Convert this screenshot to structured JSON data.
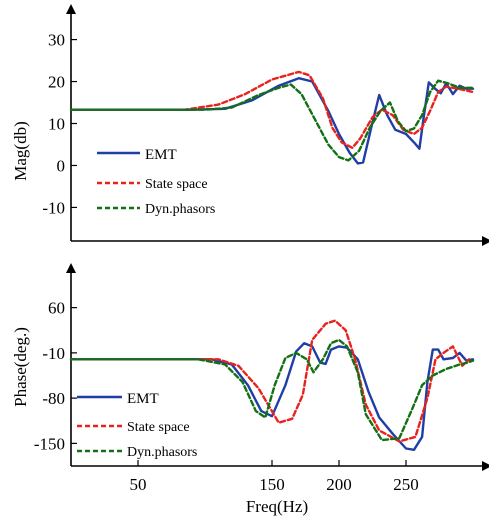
{
  "chart_data": [
    {
      "type": "line",
      "xlabel": "",
      "ylabel": "Mag(db)",
      "xlim": [
        0,
        300
      ],
      "ylim": [
        -18,
        33
      ],
      "yticks": [
        30,
        20,
        10,
        0,
        -10
      ],
      "legend": "bottom-left",
      "grid": false,
      "series": [
        {
          "name": "EMT",
          "color": "#1f3fa6",
          "dash": "solid",
          "points": [
            [
              0,
              13.3
            ],
            [
              90,
              13.3
            ],
            [
              115,
              13.5
            ],
            [
              135,
              15.5
            ],
            [
              155,
              19
            ],
            [
              170,
              20.8
            ],
            [
              180,
              20
            ],
            [
              192,
              13
            ],
            [
              200,
              7.5
            ],
            [
              208,
              3
            ],
            [
              214,
              0.5
            ],
            [
              218,
              0.7
            ],
            [
              224,
              9
            ],
            [
              230,
              16.8
            ],
            [
              236,
              12
            ],
            [
              242,
              8.5
            ],
            [
              250,
              7.5
            ],
            [
              256,
              5.5
            ],
            [
              260,
              4
            ],
            [
              263,
              11
            ],
            [
              267,
              19.8
            ],
            [
              272,
              18.2
            ],
            [
              276,
              17.2
            ],
            [
              280,
              19.6
            ],
            [
              285,
              17
            ],
            [
              290,
              19
            ],
            [
              295,
              18.3
            ],
            [
              300,
              18.3
            ]
          ]
        },
        {
          "name": "State space",
          "color": "#e8231d",
          "dash": "dash",
          "points": [
            [
              0,
              13.3
            ],
            [
              85,
              13.3
            ],
            [
              110,
              14.5
            ],
            [
              130,
              17
            ],
            [
              150,
              20.5
            ],
            [
              170,
              22.3
            ],
            [
              178,
              21.5
            ],
            [
              188,
              16
            ],
            [
              195,
              9
            ],
            [
              202,
              5.5
            ],
            [
              210,
              4.2
            ],
            [
              216,
              6.5
            ],
            [
              225,
              11.5
            ],
            [
              232,
              13.3
            ],
            [
              240,
              12
            ],
            [
              248,
              8.5
            ],
            [
              256,
              7.5
            ],
            [
              262,
              9
            ],
            [
              268,
              13
            ],
            [
              274,
              17.5
            ],
            [
              280,
              18.8
            ],
            [
              290,
              18.2
            ],
            [
              300,
              17.5
            ]
          ]
        },
        {
          "name": "Dyn.phasors",
          "color": "#137014",
          "dash": "dash",
          "points": [
            [
              0,
              13.3
            ],
            [
              100,
              13.3
            ],
            [
              120,
              13.8
            ],
            [
              140,
              16.8
            ],
            [
              155,
              18.5
            ],
            [
              164,
              19.3
            ],
            [
              172,
              17
            ],
            [
              182,
              11
            ],
            [
              192,
              5
            ],
            [
              200,
              2
            ],
            [
              207,
              1.2
            ],
            [
              215,
              3.5
            ],
            [
              223,
              9
            ],
            [
              231,
              13
            ],
            [
              238,
              15
            ],
            [
              244,
              10.5
            ],
            [
              250,
              8.2
            ],
            [
              256,
              8.8
            ],
            [
              262,
              12
            ],
            [
              268,
              17.5
            ],
            [
              274,
              20.2
            ],
            [
              282,
              19.5
            ],
            [
              290,
              18.5
            ],
            [
              300,
              18.5
            ]
          ]
        }
      ]
    },
    {
      "type": "line",
      "xlabel": "Freq(Hz)",
      "ylabel": "Phase(deg.)",
      "xlim": [
        0,
        300
      ],
      "ylim": [
        -185,
        95
      ],
      "xticks": [
        50,
        150,
        200,
        250
      ],
      "yticks": [
        60,
        -10,
        -80,
        -150
      ],
      "legend": "bottom-left",
      "grid": false,
      "series": [
        {
          "name": "EMT",
          "color": "#1f3fa6",
          "dash": "solid",
          "points": [
            [
              0,
              -20
            ],
            [
              105,
              -20
            ],
            [
              120,
              -28
            ],
            [
              132,
              -60
            ],
            [
              142,
              -100
            ],
            [
              150,
              -108
            ],
            [
              160,
              -60
            ],
            [
              168,
              -8
            ],
            [
              174,
              5
            ],
            [
              180,
              0
            ],
            [
              186,
              -25
            ],
            [
              190,
              -27
            ],
            [
              194,
              -5
            ],
            [
              200,
              0
            ],
            [
              206,
              -2
            ],
            [
              214,
              -20
            ],
            [
              222,
              -70
            ],
            [
              230,
              -110
            ],
            [
              240,
              -135
            ],
            [
              250,
              -158
            ],
            [
              256,
              -160
            ],
            [
              262,
              -140
            ],
            [
              266,
              -55
            ],
            [
              270,
              -5
            ],
            [
              274,
              -5
            ],
            [
              278,
              -20
            ],
            [
              285,
              -18
            ],
            [
              290,
              -10
            ],
            [
              295,
              -22
            ],
            [
              300,
              -20
            ]
          ]
        },
        {
          "name": "State space",
          "color": "#e8231d",
          "dash": "dash",
          "points": [
            [
              0,
              -20
            ],
            [
              110,
              -20
            ],
            [
              125,
              -30
            ],
            [
              140,
              -65
            ],
            [
              155,
              -118
            ],
            [
              165,
              -112
            ],
            [
              173,
              -75
            ],
            [
              180,
              10
            ],
            [
              190,
              35
            ],
            [
              197,
              40
            ],
            [
              205,
              25
            ],
            [
              212,
              -20
            ],
            [
              220,
              -90
            ],
            [
              230,
              -130
            ],
            [
              245,
              -147
            ],
            [
              257,
              -140
            ],
            [
              266,
              -80
            ],
            [
              272,
              -20
            ],
            [
              278,
              -10
            ],
            [
              285,
              0
            ],
            [
              292,
              -30
            ],
            [
              297,
              -20
            ]
          ]
        },
        {
          "name": "Dyn.phasors",
          "color": "#137014",
          "dash": "dash",
          "points": [
            [
              0,
              -20
            ],
            [
              95,
              -20
            ],
            [
              115,
              -28
            ],
            [
              128,
              -55
            ],
            [
              138,
              -100
            ],
            [
              145,
              -110
            ],
            [
              152,
              -60
            ],
            [
              160,
              -18
            ],
            [
              168,
              -10
            ],
            [
              176,
              -20
            ],
            [
              181,
              -40
            ],
            [
              188,
              -20
            ],
            [
              194,
              5
            ],
            [
              200,
              10
            ],
            [
              206,
              0
            ],
            [
              214,
              -40
            ],
            [
              220,
              -105
            ],
            [
              232,
              -145
            ],
            [
              245,
              -142
            ],
            [
              255,
              -95
            ],
            [
              262,
              -60
            ],
            [
              270,
              -45
            ],
            [
              280,
              -35
            ],
            [
              290,
              -28
            ],
            [
              296,
              -25
            ],
            [
              300,
              -22
            ]
          ]
        }
      ]
    }
  ]
}
